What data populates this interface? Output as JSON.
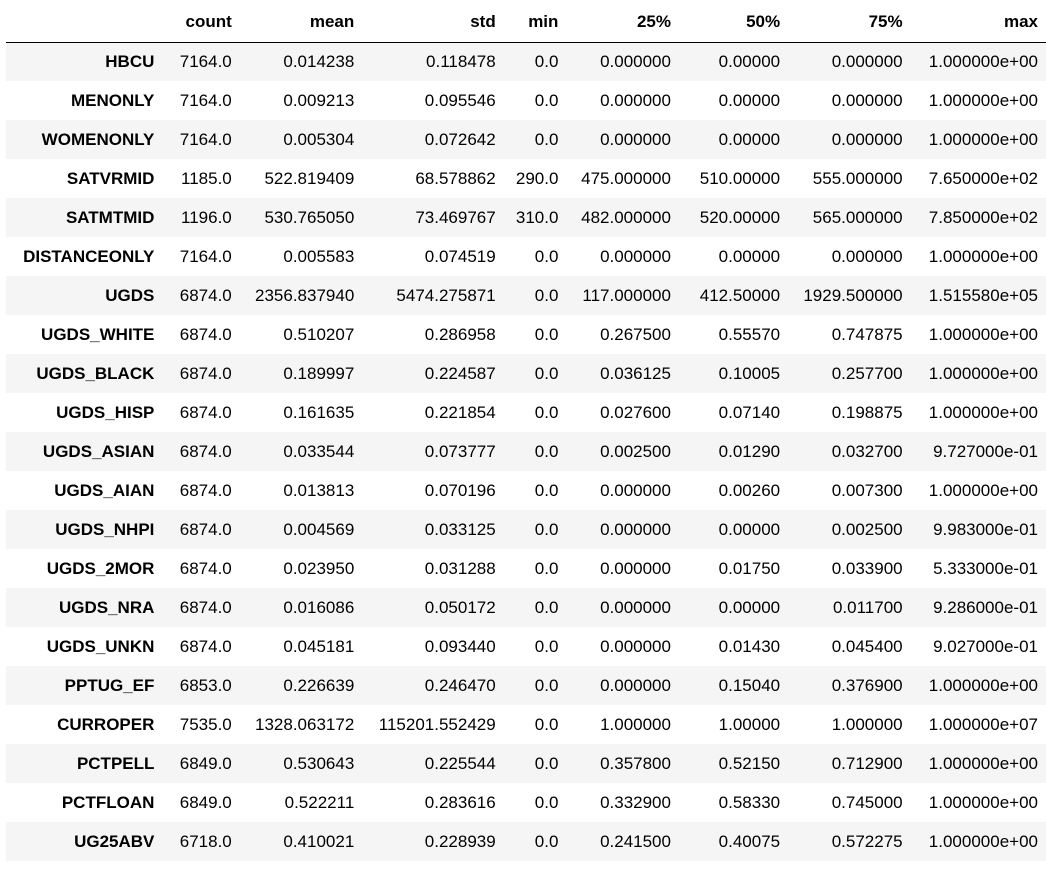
{
  "table": {
    "columns": [
      "count",
      "mean",
      "std",
      "min",
      "25%",
      "50%",
      "75%",
      "max"
    ],
    "rows": [
      {
        "index": "HBCU",
        "values": [
          "7164.0",
          "0.014238",
          "0.118478",
          "0.0",
          "0.000000",
          "0.00000",
          "0.000000",
          "1.000000e+00"
        ]
      },
      {
        "index": "MENONLY",
        "values": [
          "7164.0",
          "0.009213",
          "0.095546",
          "0.0",
          "0.000000",
          "0.00000",
          "0.000000",
          "1.000000e+00"
        ]
      },
      {
        "index": "WOMENONLY",
        "values": [
          "7164.0",
          "0.005304",
          "0.072642",
          "0.0",
          "0.000000",
          "0.00000",
          "0.000000",
          "1.000000e+00"
        ]
      },
      {
        "index": "SATVRMID",
        "values": [
          "1185.0",
          "522.819409",
          "68.578862",
          "290.0",
          "475.000000",
          "510.00000",
          "555.000000",
          "7.650000e+02"
        ]
      },
      {
        "index": "SATMTMID",
        "values": [
          "1196.0",
          "530.765050",
          "73.469767",
          "310.0",
          "482.000000",
          "520.00000",
          "565.000000",
          "7.850000e+02"
        ]
      },
      {
        "index": "DISTANCEONLY",
        "values": [
          "7164.0",
          "0.005583",
          "0.074519",
          "0.0",
          "0.000000",
          "0.00000",
          "0.000000",
          "1.000000e+00"
        ]
      },
      {
        "index": "UGDS",
        "values": [
          "6874.0",
          "2356.837940",
          "5474.275871",
          "0.0",
          "117.000000",
          "412.50000",
          "1929.500000",
          "1.515580e+05"
        ]
      },
      {
        "index": "UGDS_WHITE",
        "values": [
          "6874.0",
          "0.510207",
          "0.286958",
          "0.0",
          "0.267500",
          "0.55570",
          "0.747875",
          "1.000000e+00"
        ]
      },
      {
        "index": "UGDS_BLACK",
        "values": [
          "6874.0",
          "0.189997",
          "0.224587",
          "0.0",
          "0.036125",
          "0.10005",
          "0.257700",
          "1.000000e+00"
        ]
      },
      {
        "index": "UGDS_HISP",
        "values": [
          "6874.0",
          "0.161635",
          "0.221854",
          "0.0",
          "0.027600",
          "0.07140",
          "0.198875",
          "1.000000e+00"
        ]
      },
      {
        "index": "UGDS_ASIAN",
        "values": [
          "6874.0",
          "0.033544",
          "0.073777",
          "0.0",
          "0.002500",
          "0.01290",
          "0.032700",
          "9.727000e-01"
        ]
      },
      {
        "index": "UGDS_AIAN",
        "values": [
          "6874.0",
          "0.013813",
          "0.070196",
          "0.0",
          "0.000000",
          "0.00260",
          "0.007300",
          "1.000000e+00"
        ]
      },
      {
        "index": "UGDS_NHPI",
        "values": [
          "6874.0",
          "0.004569",
          "0.033125",
          "0.0",
          "0.000000",
          "0.00000",
          "0.002500",
          "9.983000e-01"
        ]
      },
      {
        "index": "UGDS_2MOR",
        "values": [
          "6874.0",
          "0.023950",
          "0.031288",
          "0.0",
          "0.000000",
          "0.01750",
          "0.033900",
          "5.333000e-01"
        ]
      },
      {
        "index": "UGDS_NRA",
        "values": [
          "6874.0",
          "0.016086",
          "0.050172",
          "0.0",
          "0.000000",
          "0.00000",
          "0.011700",
          "9.286000e-01"
        ]
      },
      {
        "index": "UGDS_UNKN",
        "values": [
          "6874.0",
          "0.045181",
          "0.093440",
          "0.0",
          "0.000000",
          "0.01430",
          "0.045400",
          "9.027000e-01"
        ]
      },
      {
        "index": "PPTUG_EF",
        "values": [
          "6853.0",
          "0.226639",
          "0.246470",
          "0.0",
          "0.000000",
          "0.15040",
          "0.376900",
          "1.000000e+00"
        ]
      },
      {
        "index": "CURROPER",
        "values": [
          "7535.0",
          "1328.063172",
          "115201.552429",
          "0.0",
          "1.000000",
          "1.00000",
          "1.000000",
          "1.000000e+07"
        ]
      },
      {
        "index": "PCTPELL",
        "values": [
          "6849.0",
          "0.530643",
          "0.225544",
          "0.0",
          "0.357800",
          "0.52150",
          "0.712900",
          "1.000000e+00"
        ]
      },
      {
        "index": "PCTFLOAN",
        "values": [
          "6849.0",
          "0.522211",
          "0.283616",
          "0.0",
          "0.332900",
          "0.58330",
          "0.745000",
          "1.000000e+00"
        ]
      },
      {
        "index": "UG25ABV",
        "values": [
          "6718.0",
          "0.410021",
          "0.228939",
          "0.0",
          "0.241500",
          "0.40075",
          "0.572275",
          "1.000000e+00"
        ]
      }
    ]
  }
}
